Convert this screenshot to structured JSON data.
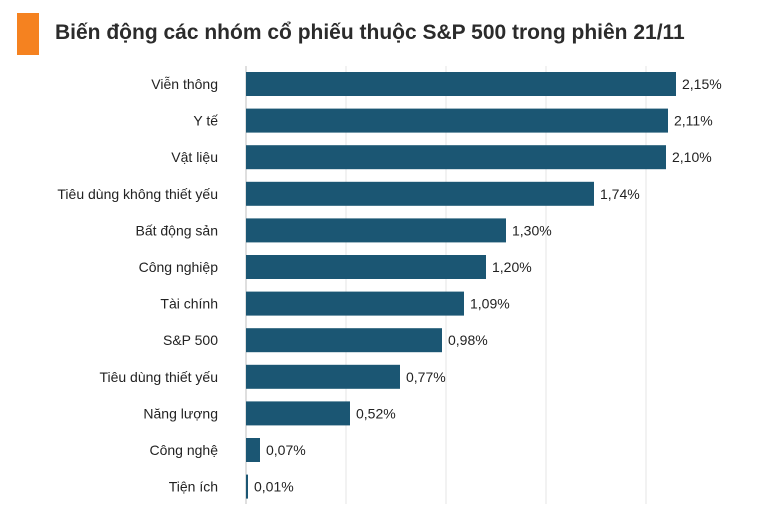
{
  "header": {
    "title": "Biến động các nhóm cổ phiếu thuộc S&P 500 trong phiên 21/11"
  },
  "colors": {
    "accent": "#f58220",
    "bar": "#1b5673",
    "grid": "#e4e4e4",
    "axis": "#bfbfbf"
  },
  "chart_data": {
    "type": "bar",
    "orientation": "horizontal",
    "title": "Biến động các nhóm cổ phiếu thuộc S&P 500 trong phiên 21/11",
    "xlabel": "",
    "ylabel": "",
    "unit": "%",
    "xlim": [
      0,
      2.3
    ],
    "grid": true,
    "categories": [
      "Viễn thông",
      "Y tế",
      "Vật liệu",
      "Tiêu dùng không thiết yếu",
      "Bất động sản",
      "Công nghiệp",
      "Tài chính",
      "S&P 500",
      "Tiêu dùng thiết yếu",
      "Năng lượng",
      "Công nghệ",
      "Tiện ích"
    ],
    "values": [
      2.15,
      2.11,
      2.1,
      1.74,
      1.3,
      1.2,
      1.09,
      0.98,
      0.77,
      0.52,
      0.07,
      0.01
    ],
    "value_labels": [
      "2,15%",
      "2,11%",
      "2,10%",
      "1,74%",
      "1,30%",
      "1,20%",
      "1,09%",
      "0,98%",
      "0,77%",
      "0,52%",
      "0,07%",
      "0,01%"
    ]
  }
}
